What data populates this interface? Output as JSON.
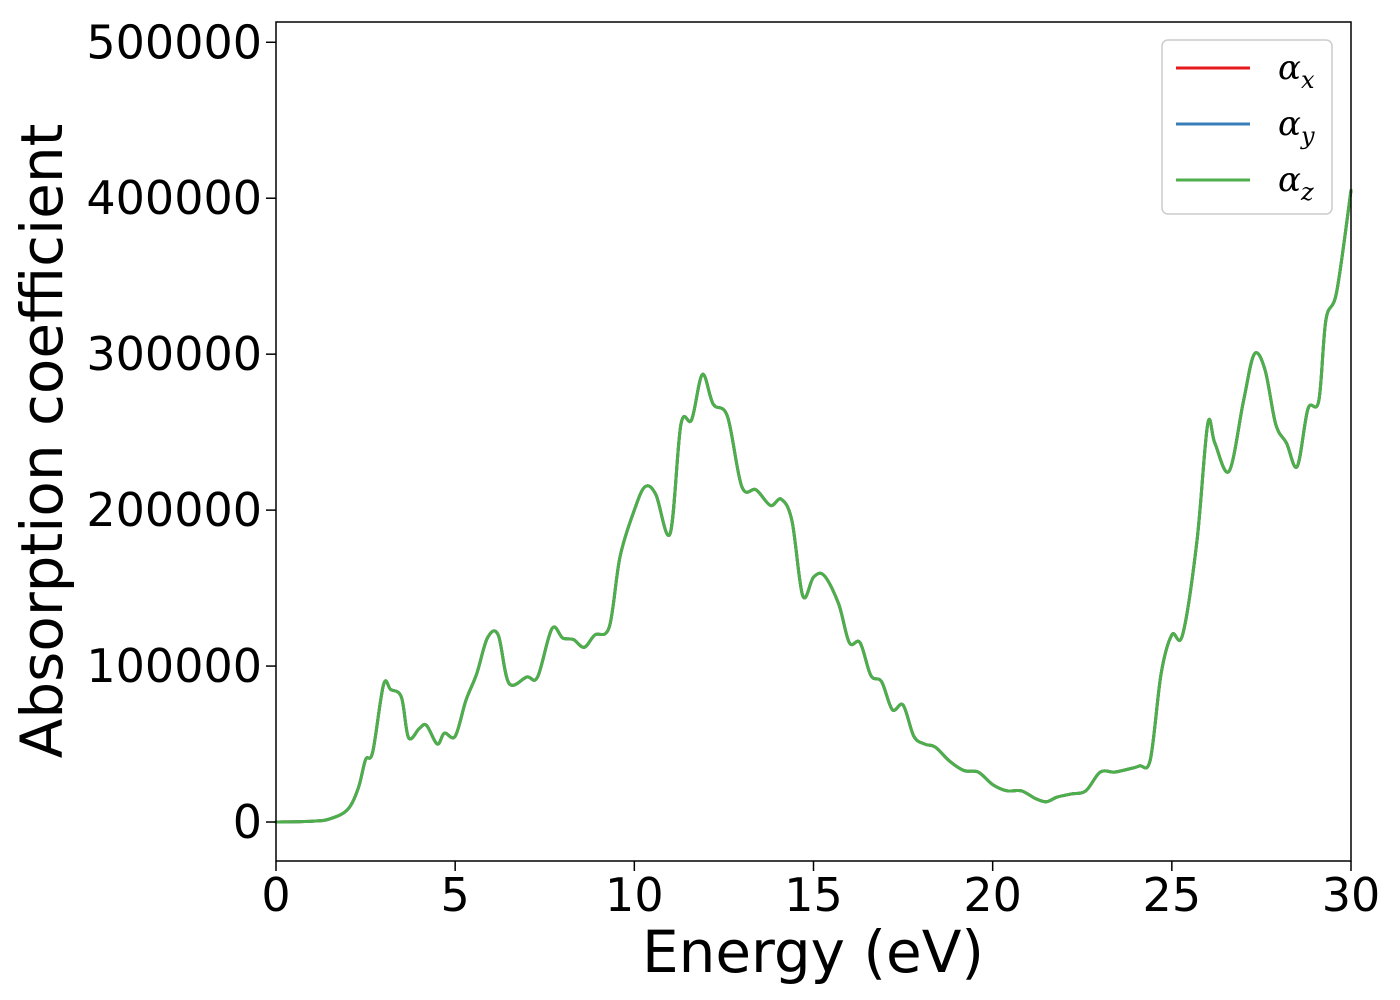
{
  "chart_data": {
    "type": "line",
    "title": "",
    "xlabel": "Energy (eV)",
    "ylabel": "Absorption coefficient",
    "xlim": [
      0,
      30
    ],
    "ylim": [
      -25000,
      513000
    ],
    "xticks": [
      0,
      5,
      10,
      15,
      20,
      25,
      30
    ],
    "yticks": [
      0,
      100000,
      200000,
      300000,
      400000,
      500000
    ],
    "xtick_labels": [
      "0",
      "5",
      "10",
      "15",
      "20",
      "25",
      "30"
    ],
    "ytick_labels": [
      "0",
      "100000",
      "200000",
      "300000",
      "400000",
      "500000"
    ],
    "grid": false,
    "legend_position": "top-right",
    "x": [
      0,
      1,
      1.5,
      2.0,
      2.3,
      2.5,
      2.7,
      3.0,
      3.2,
      3.5,
      3.7,
      4.0,
      4.2,
      4.5,
      4.7,
      5.0,
      5.3,
      5.6,
      5.9,
      6.2,
      6.5,
      7.0,
      7.3,
      7.7,
      8.0,
      8.3,
      8.6,
      8.9,
      9.3,
      9.6,
      10.0,
      10.3,
      10.6,
      11.0,
      11.3,
      11.6,
      11.9,
      12.2,
      12.6,
      13.0,
      13.4,
      13.8,
      14.1,
      14.4,
      14.7,
      15.0,
      15.3,
      15.7,
      16.0,
      16.3,
      16.6,
      16.9,
      17.2,
      17.5,
      17.8,
      18.1,
      18.4,
      18.8,
      19.2,
      19.6,
      20.0,
      20.4,
      20.8,
      21.2,
      21.5,
      21.8,
      22.2,
      22.6,
      23.0,
      23.4,
      23.8,
      24.1,
      24.4,
      24.7,
      25.0,
      25.3,
      25.7,
      26.0,
      26.2,
      26.6,
      27.0,
      27.3,
      27.6,
      27.9,
      28.2,
      28.5,
      28.8,
      29.1,
      29.3,
      29.6,
      30.0
    ],
    "series": [
      {
        "name": "α_x",
        "color": "#e41a1c",
        "values": [
          0,
          500,
          2000,
          8000,
          22000,
          40000,
          45000,
          88000,
          85000,
          80000,
          54000,
          60000,
          62000,
          50000,
          57000,
          55000,
          78000,
          95000,
          118000,
          120000,
          89000,
          93000,
          93000,
          124000,
          118000,
          117000,
          112000,
          120000,
          125000,
          170000,
          200000,
          215000,
          210000,
          185000,
          255000,
          258000,
          287000,
          268000,
          260000,
          215000,
          213000,
          203000,
          207000,
          193000,
          145000,
          157000,
          158000,
          140000,
          115000,
          115000,
          94000,
          90000,
          72000,
          75000,
          55000,
          50000,
          48000,
          39000,
          33000,
          32000,
          24000,
          20000,
          20000,
          15000,
          13000,
          16000,
          18000,
          20000,
          32000,
          32000,
          34000,
          36000,
          40000,
          95000,
          120000,
          120000,
          180000,
          255000,
          243000,
          225000,
          270000,
          300000,
          290000,
          255000,
          243000,
          228000,
          265000,
          270000,
          322000,
          340000,
          405000
        ]
      },
      {
        "name": "α_y",
        "color": "#377eb8",
        "values": [
          0,
          500,
          2000,
          8000,
          22000,
          40000,
          45000,
          88000,
          85000,
          80000,
          54000,
          60000,
          62000,
          50000,
          57000,
          55000,
          78000,
          95000,
          118000,
          120000,
          89000,
          93000,
          93000,
          124000,
          118000,
          117000,
          112000,
          120000,
          125000,
          170000,
          200000,
          215000,
          210000,
          185000,
          255000,
          258000,
          287000,
          268000,
          260000,
          215000,
          213000,
          203000,
          207000,
          193000,
          145000,
          157000,
          158000,
          140000,
          115000,
          115000,
          94000,
          90000,
          72000,
          75000,
          55000,
          50000,
          48000,
          39000,
          33000,
          32000,
          24000,
          20000,
          20000,
          15000,
          13000,
          16000,
          18000,
          20000,
          32000,
          32000,
          34000,
          36000,
          40000,
          95000,
          120000,
          120000,
          180000,
          255000,
          243000,
          225000,
          270000,
          300000,
          290000,
          255000,
          243000,
          228000,
          265000,
          270000,
          322000,
          340000,
          405000
        ]
      },
      {
        "name": "α_z",
        "color": "#4daf4a",
        "values": [
          0,
          500,
          2000,
          8000,
          22000,
          40000,
          45000,
          88000,
          85000,
          80000,
          54000,
          60000,
          62000,
          50000,
          57000,
          55000,
          78000,
          95000,
          118000,
          120000,
          89000,
          93000,
          93000,
          124000,
          118000,
          117000,
          112000,
          120000,
          125000,
          170000,
          200000,
          215000,
          210000,
          185000,
          255000,
          258000,
          287000,
          268000,
          260000,
          215000,
          213000,
          203000,
          207000,
          193000,
          145000,
          157000,
          158000,
          140000,
          115000,
          115000,
          94000,
          90000,
          72000,
          75000,
          55000,
          50000,
          48000,
          39000,
          33000,
          32000,
          24000,
          20000,
          20000,
          15000,
          13000,
          16000,
          18000,
          20000,
          32000,
          32000,
          34000,
          36000,
          40000,
          95000,
          120000,
          120000,
          180000,
          255000,
          243000,
          225000,
          270000,
          300000,
          290000,
          255000,
          243000,
          228000,
          265000,
          270000,
          322000,
          340000,
          405000
        ]
      }
    ]
  }
}
